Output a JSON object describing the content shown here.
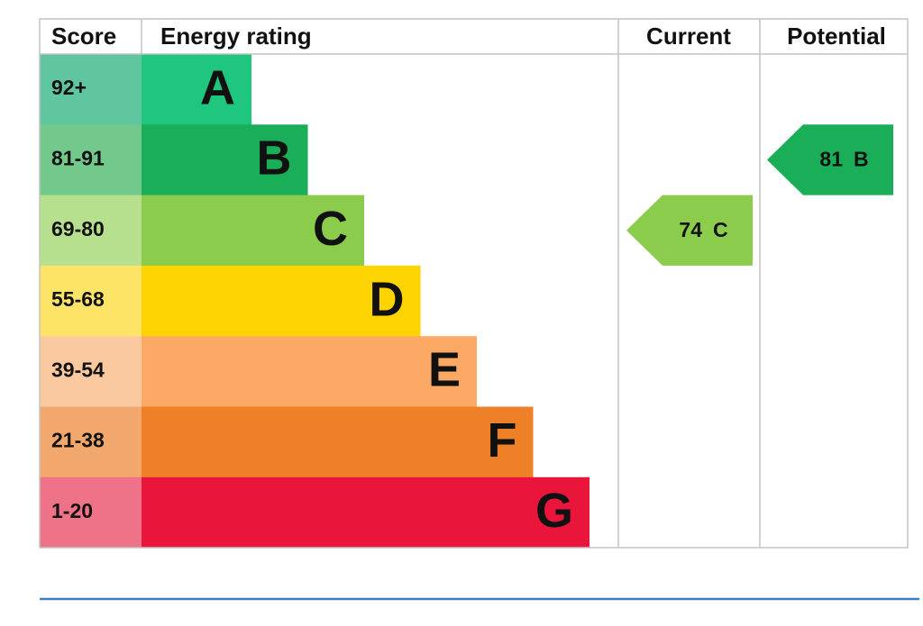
{
  "header": {
    "score": "Score",
    "energy_rating": "Energy rating",
    "current": "Current",
    "potential": "Potential"
  },
  "bands": [
    {
      "score": "92+",
      "rating": "A",
      "color": "#1fc67e",
      "score_color": "#5fc6a0"
    },
    {
      "score": "81-91",
      "rating": "B",
      "color": "#1aae58",
      "score_color": "#72c98b"
    },
    {
      "score": "69-80",
      "rating": "C",
      "color": "#8ccc4c",
      "score_color": "#b7e08e"
    },
    {
      "score": "55-68",
      "rating": "D",
      "color": "#fdd300",
      "score_color": "#fde466"
    },
    {
      "score": "39-54",
      "rating": "E",
      "color": "#fba965",
      "score_color": "#fbc9a0"
    },
    {
      "score": "21-38",
      "rating": "F",
      "color": "#ee8128",
      "score_color": "#f2a86c"
    },
    {
      "score": "1-20",
      "rating": "G",
      "color": "#e9153b",
      "score_color": "#ef7388"
    }
  ],
  "current": {
    "score": 74,
    "rating": "C"
  },
  "potential": {
    "score": 81,
    "rating": "B"
  }
}
